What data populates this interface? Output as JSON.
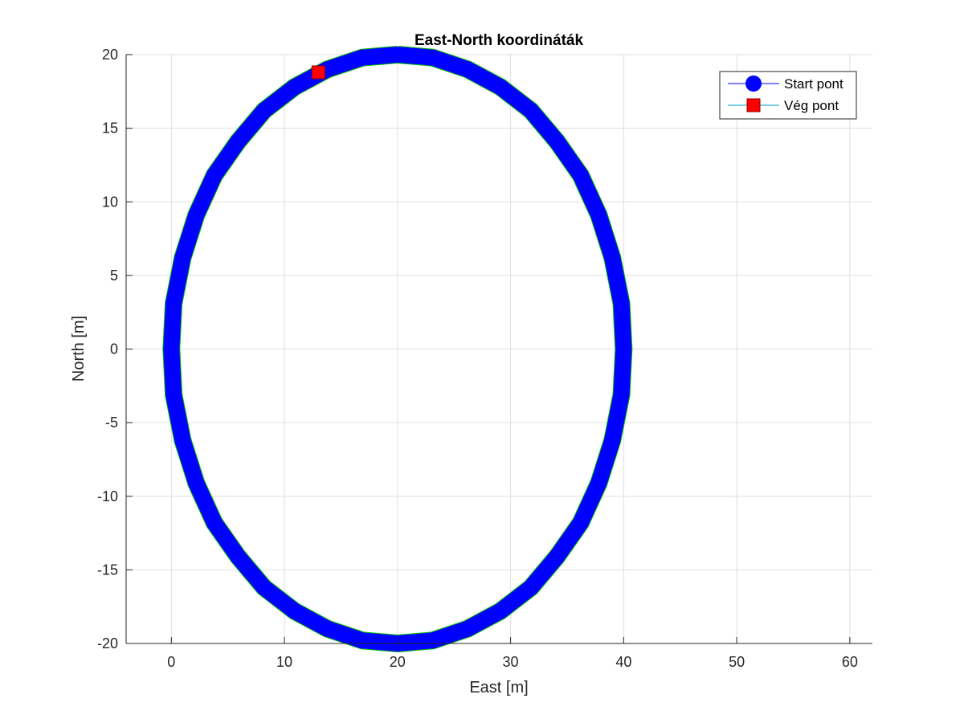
{
  "chart_data": {
    "type": "line",
    "title": "East-North koordináták",
    "xlabel": "East [m]",
    "ylabel": "North [m]",
    "xlim": [
      -4,
      62
    ],
    "ylim": [
      -20,
      20
    ],
    "xticks": [
      0,
      10,
      20,
      30,
      40,
      50,
      60
    ],
    "yticks": [
      -20,
      -15,
      -10,
      -5,
      0,
      5,
      10,
      15,
      20
    ],
    "grid": true,
    "legend_position": "top-right",
    "series": [
      {
        "name": "Start pont",
        "kind": "trajectory-markers",
        "marker": "circle",
        "color": "#0000ff",
        "line_color": "#0000ff",
        "x": [
          20.0,
          23.1,
          26.2,
          29.1,
          31.8,
          34.1,
          36.2,
          37.8,
          39.0,
          39.8,
          40.0,
          39.8,
          39.0,
          37.8,
          36.2,
          34.1,
          31.8,
          29.1,
          26.2,
          23.1,
          20.0,
          16.9,
          13.8,
          10.9,
          8.2,
          5.9,
          3.8,
          2.2,
          1.0,
          0.2,
          0.0,
          0.2,
          1.0,
          2.2,
          3.8,
          5.9,
          8.2,
          10.9,
          13.8,
          16.9,
          20.0
        ],
        "y": [
          20.0,
          19.8,
          19.0,
          17.8,
          16.2,
          14.1,
          11.8,
          9.1,
          6.2,
          3.1,
          0.0,
          -3.1,
          -6.2,
          -9.1,
          -11.8,
          -14.1,
          -16.2,
          -17.8,
          -19.0,
          -19.8,
          -20.0,
          -19.8,
          -19.0,
          -17.8,
          -16.2,
          -14.1,
          -11.8,
          -9.1,
          -6.2,
          -3.1,
          0.0,
          3.1,
          6.2,
          9.1,
          11.8,
          14.1,
          16.2,
          17.8,
          19.0,
          19.8,
          20.0
        ]
      },
      {
        "name": "Vég pont",
        "kind": "end-marker",
        "marker": "square",
        "color": "#ff0000",
        "line_color": "#00a0c8",
        "x": [
          13.0
        ],
        "y": [
          18.8
        ]
      }
    ]
  }
}
